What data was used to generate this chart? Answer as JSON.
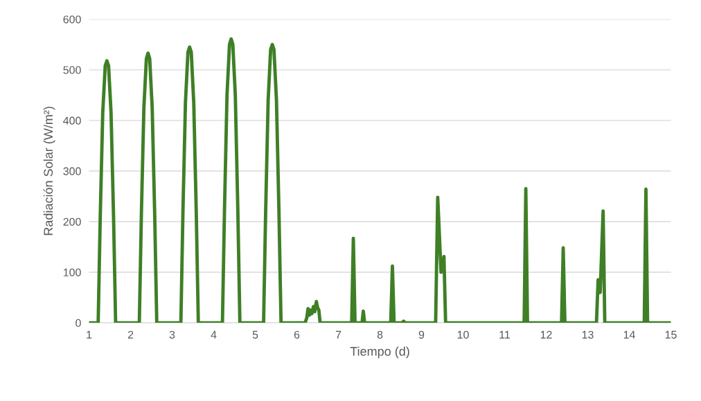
{
  "chart_data": {
    "type": "line",
    "xlabel": "Tiempo (d)",
    "ylabel": "Radiación Solar (W/m²)",
    "xlim": [
      1,
      15
    ],
    "xticks": [
      1,
      2,
      3,
      4,
      5,
      6,
      7,
      8,
      9,
      10,
      11,
      12,
      13,
      14,
      15
    ],
    "ylim": [
      0,
      600
    ],
    "yticks": [
      0,
      100,
      200,
      300,
      400,
      500,
      600
    ],
    "grid": "y",
    "marker": "none",
    "line_style": "solid",
    "legend": false,
    "series": [
      {
        "color": "#3f7f26",
        "x": [
          1,
          1.22,
          1.27,
          1.33,
          1.39,
          1.43,
          1.47,
          1.53,
          1.59,
          1.64,
          2.21,
          2.26,
          2.32,
          2.38,
          2.42,
          2.46,
          2.52,
          2.58,
          2.63,
          3.21,
          3.26,
          3.32,
          3.38,
          3.42,
          3.46,
          3.52,
          3.58,
          3.63,
          4.21,
          4.26,
          4.32,
          4.38,
          4.42,
          4.46,
          4.52,
          4.58,
          4.63,
          5.2,
          5.25,
          5.31,
          5.37,
          5.41,
          5.45,
          5.51,
          5.57,
          5.62,
          6.2,
          6.24,
          6.27,
          6.3,
          6.33,
          6.36,
          6.4,
          6.43,
          6.47,
          6.5,
          6.53,
          6.56,
          7.32,
          7.36,
          7.4,
          7.57,
          7.6,
          7.63,
          8.26,
          8.3,
          8.34,
          8.53,
          8.57,
          8.61,
          9.34,
          9.39,
          9.47,
          9.54,
          9.58,
          11.47,
          11.51,
          11.55,
          12.37,
          12.41,
          12.45,
          13.21,
          13.25,
          13.3,
          13.37,
          13.41,
          14.36,
          14.4,
          14.44,
          15
        ],
        "values": [
          0,
          0,
          210,
          415,
          508,
          518,
          508,
          415,
          210,
          0,
          0,
          215,
          425,
          522,
          533,
          522,
          425,
          215,
          0,
          0,
          220,
          435,
          535,
          545,
          535,
          435,
          220,
          0,
          0,
          225,
          450,
          550,
          561,
          550,
          450,
          225,
          0,
          0,
          220,
          440,
          540,
          550,
          540,
          440,
          220,
          0,
          0,
          10,
          28,
          15,
          25,
          18,
          32,
          22,
          42,
          30,
          25,
          0,
          0,
          167,
          0,
          0,
          23,
          0,
          0,
          112,
          0,
          0,
          3,
          0,
          0,
          248,
          100,
          131,
          0,
          0,
          265,
          0,
          0,
          148,
          0,
          0,
          85,
          60,
          221,
          0,
          0,
          264,
          0,
          0
        ]
      }
    ]
  }
}
